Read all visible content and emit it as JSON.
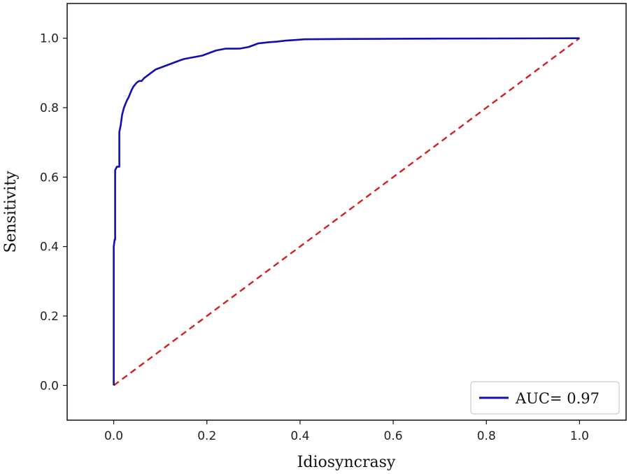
{
  "chart_data": {
    "type": "line",
    "title": "",
    "xlabel": "Idiosyncrasy",
    "ylabel": "Sensitivity",
    "xlim": [
      -0.1,
      1.1
    ],
    "ylim": [
      -0.1,
      1.1
    ],
    "xticks": [
      "0.0",
      "0.2",
      "0.4",
      "0.6",
      "0.8",
      "1.0"
    ],
    "yticks": [
      "0.0",
      "0.2",
      "0.4",
      "0.6",
      "0.8",
      "1.0"
    ],
    "grid": false,
    "legend_placement": "lower-right",
    "series": [
      {
        "name": "AUC= 0.97",
        "color": "#1010b0",
        "style": "solid",
        "x": [
          0,
          0,
          0.002,
          0.003,
          0.003,
          0.007,
          0.012,
          0.012,
          0.015,
          0.018,
          0.022,
          0.025,
          0.028,
          0.032,
          0.035,
          0.038,
          0.042,
          0.045,
          0.048,
          0.052,
          0.055,
          0.06,
          0.065,
          0.07,
          0.075,
          0.08,
          0.085,
          0.09,
          0.1,
          0.11,
          0.12,
          0.13,
          0.14,
          0.15,
          0.17,
          0.19,
          0.2,
          0.22,
          0.24,
          0.27,
          0.29,
          0.31,
          0.33,
          0.35,
          0.37,
          0.39,
          0.41,
          0.5,
          0.7,
          1.0
        ],
        "y": [
          0,
          0.4,
          0.42,
          0.42,
          0.62,
          0.63,
          0.63,
          0.73,
          0.75,
          0.78,
          0.8,
          0.81,
          0.82,
          0.83,
          0.84,
          0.85,
          0.86,
          0.865,
          0.87,
          0.875,
          0.877,
          0.877,
          0.885,
          0.89,
          0.895,
          0.9,
          0.905,
          0.91,
          0.915,
          0.92,
          0.925,
          0.93,
          0.935,
          0.94,
          0.945,
          0.95,
          0.955,
          0.965,
          0.97,
          0.97,
          0.975,
          0.985,
          0.988,
          0.99,
          0.993,
          0.995,
          0.997,
          0.998,
          0.999,
          1.0
        ]
      },
      {
        "name": "",
        "color": "#d42020",
        "style": "dashed",
        "x": [
          0,
          1
        ],
        "y": [
          0,
          1
        ]
      }
    ]
  }
}
